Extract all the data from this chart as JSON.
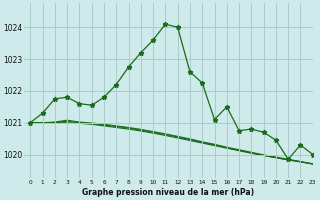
{
  "title": "Graphe pression niveau de la mer (hPa)",
  "background_color": "#ceeaea",
  "grid_color": "#aacccc",
  "line_color": "#1a6b1a",
  "xlim": [
    -0.5,
    23
  ],
  "ylim": [
    1019.25,
    1024.75
  ],
  "yticks": [
    1020,
    1021,
    1022,
    1023,
    1024
  ],
  "xticks": [
    0,
    1,
    2,
    3,
    4,
    5,
    6,
    7,
    8,
    9,
    10,
    11,
    12,
    13,
    14,
    15,
    16,
    17,
    18,
    19,
    20,
    21,
    22,
    23
  ],
  "series_main": [
    1021.0,
    1021.3,
    1021.75,
    1021.8,
    1021.6,
    1021.55,
    1021.8,
    1022.2,
    1022.75,
    1023.2,
    1023.6,
    1024.1,
    1024.0,
    1022.6,
    1022.25,
    1021.1,
    1021.5,
    1020.75,
    1020.8,
    1020.7,
    1020.45,
    1019.85,
    1020.3,
    1020.0
  ],
  "series_trend1": [
    1021.0,
    1021.0,
    1021.0,
    1021.05,
    1021.0,
    1020.97,
    1020.93,
    1020.88,
    1020.83,
    1020.77,
    1020.7,
    1020.63,
    1020.55,
    1020.47,
    1020.38,
    1020.3,
    1020.21,
    1020.13,
    1020.05,
    1019.97,
    1019.9,
    1019.83,
    1019.77,
    1019.7
  ],
  "series_trend2": [
    1021.0,
    1021.0,
    1021.0,
    1021.0,
    1020.98,
    1020.95,
    1020.9,
    1020.85,
    1020.8,
    1020.74,
    1020.67,
    1020.6,
    1020.52,
    1020.44,
    1020.36,
    1020.28,
    1020.2,
    1020.12,
    1020.04,
    1019.97,
    1019.9,
    1019.83,
    1019.77,
    1019.7
  ],
  "series_trend3": [
    1021.0,
    1021.0,
    1021.02,
    1021.08,
    1021.02,
    1020.99,
    1020.95,
    1020.9,
    1020.85,
    1020.79,
    1020.72,
    1020.65,
    1020.57,
    1020.49,
    1020.4,
    1020.32,
    1020.23,
    1020.15,
    1020.07,
    1019.99,
    1019.92,
    1019.85,
    1019.78,
    1019.71
  ]
}
